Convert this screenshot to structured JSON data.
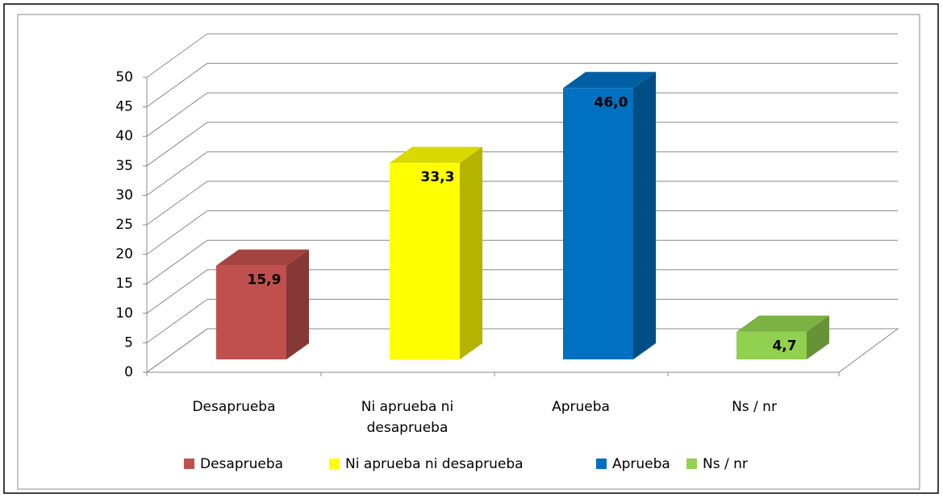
{
  "chart_data": {
    "type": "bar3d",
    "categories": [
      "Desaprueba",
      "Ni aprueba ni desaprueba",
      "Aprueba",
      "Ns / nr"
    ],
    "values": [
      15.9,
      33.3,
      46.0,
      4.7
    ],
    "value_labels": [
      "15,9",
      "33,3",
      "46,0",
      "4,7"
    ],
    "colors": [
      "#c0504d",
      "#ffff00",
      "#0070c0",
      "#92d050"
    ],
    "ylim": [
      0,
      50
    ],
    "yticks": [
      0,
      5,
      10,
      15,
      20,
      25,
      30,
      35,
      40,
      45,
      50
    ],
    "grid": true,
    "legend": "bottom"
  }
}
